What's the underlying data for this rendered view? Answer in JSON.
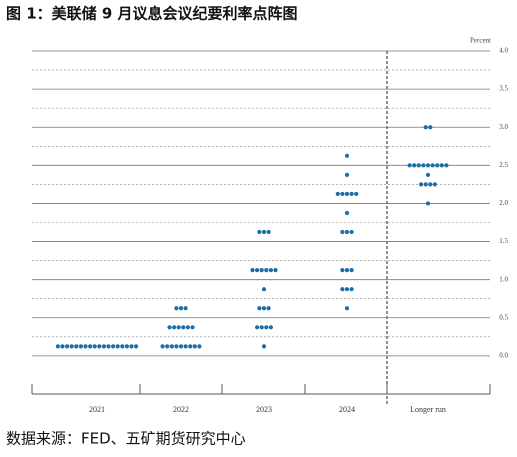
{
  "chart_data": {
    "type": "dot_plot",
    "title": "图 1：美联储 9 月议息会议纪要利率点阵图",
    "y_label": "Percent",
    "source": "数据来源：FED、五矿期货研究中心",
    "color": "#1b6fa6",
    "ylim": [
      -0.5,
      4.0
    ],
    "yticks": [
      {
        "value": 0,
        "label": "0.0"
      },
      {
        "value": 0.5,
        "label": "0.5"
      },
      {
        "value": 1,
        "label": "1.0"
      },
      {
        "value": 1.5,
        "label": "1.5"
      },
      {
        "value": 2,
        "label": "2.0"
      },
      {
        "value": 2.5,
        "label": "2.5"
      },
      {
        "value": 3,
        "label": "3.0"
      },
      {
        "value": 3.5,
        "label": "3.5"
      },
      {
        "value": 4,
        "label": "4.0"
      }
    ],
    "minor_grid": [
      0.25,
      0.75,
      1.25,
      1.75,
      2.25,
      2.75,
      3.25,
      3.75
    ],
    "categories": [
      "2021",
      "2022",
      "2023",
      "2024",
      "Longer run"
    ],
    "series": [
      {
        "dots": [
          {
            "rate": 0.125,
            "count": 18
          }
        ]
      },
      {
        "dots": [
          {
            "rate": 0.125,
            "count": 9
          },
          {
            "rate": 0.375,
            "count": 6
          },
          {
            "rate": 0.625,
            "count": 3
          }
        ]
      },
      {
        "dots": [
          {
            "rate": 0.125,
            "count": 1
          },
          {
            "rate": 0.375,
            "count": 4
          },
          {
            "rate": 0.625,
            "count": 3
          },
          {
            "rate": 0.875,
            "count": 1
          },
          {
            "rate": 1.125,
            "count": 6
          },
          {
            "rate": 1.625,
            "count": 3
          }
        ]
      },
      {
        "dots": [
          {
            "rate": 0.625,
            "count": 1
          },
          {
            "rate": 0.875,
            "count": 3
          },
          {
            "rate": 1.125,
            "count": 3
          },
          {
            "rate": 1.625,
            "count": 3
          },
          {
            "rate": 1.875,
            "count": 1
          },
          {
            "rate": 2.125,
            "count": 5
          },
          {
            "rate": 2.375,
            "count": 1
          },
          {
            "rate": 2.625,
            "count": 1
          }
        ]
      },
      {
        "dots": [
          {
            "rate": 2.0,
            "count": 1
          },
          {
            "rate": 2.25,
            "count": 4
          },
          {
            "rate": 2.375,
            "count": 1
          },
          {
            "rate": 2.5,
            "count": 9
          },
          {
            "rate": 3.0,
            "count": 2
          }
        ]
      }
    ]
  }
}
